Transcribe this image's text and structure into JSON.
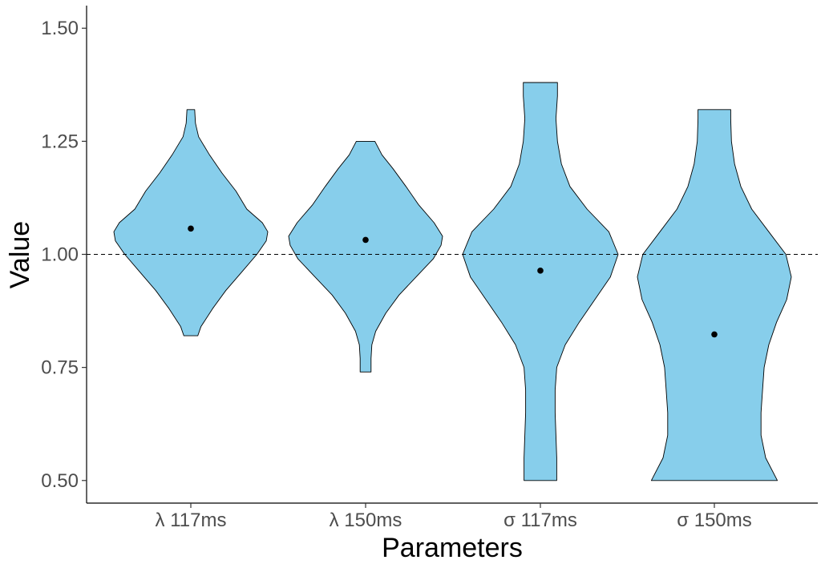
{
  "chart_data": {
    "type": "violin",
    "xlabel": "Parameters",
    "ylabel": "Value",
    "ylim": [
      0.45,
      1.55
    ],
    "yticks": [
      0.5,
      0.75,
      1.0,
      1.25,
      1.5
    ],
    "ytick_labels": [
      "0.50",
      "0.75",
      "1.00",
      "1.25",
      "1.50"
    ],
    "reference_line": {
      "y": 1.0,
      "style": "dashed"
    },
    "grid": false,
    "legend": "none",
    "fill_color": "#87CEEB",
    "categories": [
      "λ 117ms",
      "λ 150ms",
      "σ 117ms",
      "σ 150ms"
    ],
    "violins": [
      {
        "category": "λ 117ms",
        "min": 0.82,
        "max": 1.32,
        "point": 1.057,
        "density": [
          [
            0.82,
            0.09
          ],
          [
            0.84,
            0.13
          ],
          [
            0.88,
            0.28
          ],
          [
            0.92,
            0.45
          ],
          [
            0.96,
            0.65
          ],
          [
            1.0,
            0.85
          ],
          [
            1.03,
            0.97
          ],
          [
            1.05,
            0.99
          ],
          [
            1.07,
            0.92
          ],
          [
            1.1,
            0.72
          ],
          [
            1.14,
            0.58
          ],
          [
            1.18,
            0.4
          ],
          [
            1.22,
            0.24
          ],
          [
            1.26,
            0.1
          ],
          [
            1.29,
            0.06
          ],
          [
            1.32,
            0.05
          ]
        ]
      },
      {
        "category": "λ 150ms",
        "min": 0.74,
        "max": 1.25,
        "point": 1.032,
        "density": [
          [
            0.74,
            0.07
          ],
          [
            0.77,
            0.07
          ],
          [
            0.8,
            0.08
          ],
          [
            0.83,
            0.13
          ],
          [
            0.87,
            0.26
          ],
          [
            0.91,
            0.43
          ],
          [
            0.95,
            0.65
          ],
          [
            0.99,
            0.87
          ],
          [
            1.02,
            0.97
          ],
          [
            1.04,
            0.99
          ],
          [
            1.07,
            0.88
          ],
          [
            1.11,
            0.68
          ],
          [
            1.15,
            0.52
          ],
          [
            1.19,
            0.35
          ],
          [
            1.22,
            0.21
          ],
          [
            1.25,
            0.12
          ]
        ]
      },
      {
        "category": "σ 117ms",
        "min": 0.5,
        "max": 1.38,
        "point": 0.964,
        "density": [
          [
            0.5,
            0.21
          ],
          [
            0.55,
            0.21
          ],
          [
            0.6,
            0.2
          ],
          [
            0.65,
            0.19
          ],
          [
            0.7,
            0.19
          ],
          [
            0.75,
            0.21
          ],
          [
            0.8,
            0.32
          ],
          [
            0.85,
            0.5
          ],
          [
            0.9,
            0.7
          ],
          [
            0.95,
            0.9
          ],
          [
            1.0,
            1.0
          ],
          [
            1.05,
            0.88
          ],
          [
            1.1,
            0.6
          ],
          [
            1.15,
            0.38
          ],
          [
            1.2,
            0.27
          ],
          [
            1.25,
            0.22
          ],
          [
            1.3,
            0.2
          ],
          [
            1.35,
            0.22
          ],
          [
            1.38,
            0.22
          ]
        ]
      },
      {
        "category": "σ 150ms",
        "min": 0.5,
        "max": 1.32,
        "point": 0.823,
        "density": [
          [
            0.5,
            0.81
          ],
          [
            0.55,
            0.66
          ],
          [
            0.6,
            0.6
          ],
          [
            0.65,
            0.6
          ],
          [
            0.7,
            0.62
          ],
          [
            0.75,
            0.64
          ],
          [
            0.8,
            0.7
          ],
          [
            0.85,
            0.8
          ],
          [
            0.9,
            0.93
          ],
          [
            0.95,
            0.99
          ],
          [
            1.0,
            0.92
          ],
          [
            1.05,
            0.7
          ],
          [
            1.1,
            0.48
          ],
          [
            1.15,
            0.34
          ],
          [
            1.2,
            0.26
          ],
          [
            1.25,
            0.22
          ],
          [
            1.3,
            0.21
          ],
          [
            1.32,
            0.21
          ]
        ]
      }
    ]
  }
}
